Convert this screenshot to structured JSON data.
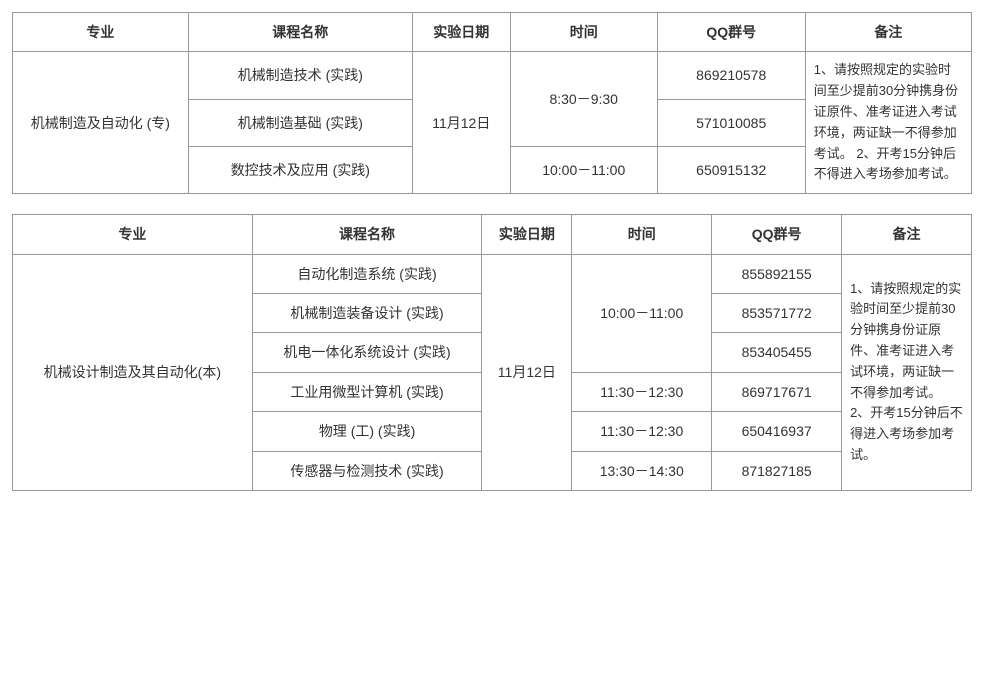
{
  "headers": {
    "major": "专业",
    "course": "课程名称",
    "date": "实验日期",
    "time": "时间",
    "qq": "QQ群号",
    "notes": "备注"
  },
  "table1": {
    "col_widths": [
      "180px",
      "230px",
      "100px",
      "150px",
      "150px",
      "170px"
    ],
    "major": "机械制造及自动化 (专)",
    "date": "11月12日",
    "notes": "1、请按照规定的实验时间至少提前30分钟携身份证原件、准考证进入考试环境，两证缺一不得参加考试。\n2、开考15分钟后不得进入考场参加考试。",
    "rows": [
      {
        "course": "机械制造技术 (实践)",
        "time": "8:30－9:30",
        "time_rowspan": 2,
        "qq": "869210578"
      },
      {
        "course": "机械制造基础 (实践)",
        "qq": "571010085"
      },
      {
        "course": "数控技术及应用 (实践)",
        "time": "10:00－11:00",
        "time_rowspan": 1,
        "qq": "650915132"
      }
    ]
  },
  "table2": {
    "col_widths": [
      "240px",
      "230px",
      "90px",
      "140px",
      "130px",
      "130px"
    ],
    "major": "机械设计制造及其自动化(本)",
    "date": "11月12日",
    "notes": "1、请按照规定的实验时间至少提前30分钟携身份证原件、准考证进入考试环境，两证缺一不得参加考试。\n2、开考15分钟后不得进入考场参加考试。",
    "rows": [
      {
        "course": "自动化制造系统 (实践)",
        "time": "10:00－11:00",
        "time_rowspan": 3,
        "qq": "855892155"
      },
      {
        "course": "机械制造装备设计 (实践)",
        "qq": "853571772"
      },
      {
        "course": "机电一体化系统设计 (实践)",
        "qq": "853405455"
      },
      {
        "course": "工业用微型计算机  (实践)",
        "time": "11:30－12:30",
        "time_rowspan": 1,
        "qq": "869717671"
      },
      {
        "course": "物理 (工)  (实践)",
        "time": "11:30－12:30",
        "time_rowspan": 1,
        "qq": "650416937"
      },
      {
        "course": "传感器与检测技术 (实践)",
        "time": "13:30－14:30",
        "time_rowspan": 1,
        "qq": "871827185"
      }
    ]
  }
}
